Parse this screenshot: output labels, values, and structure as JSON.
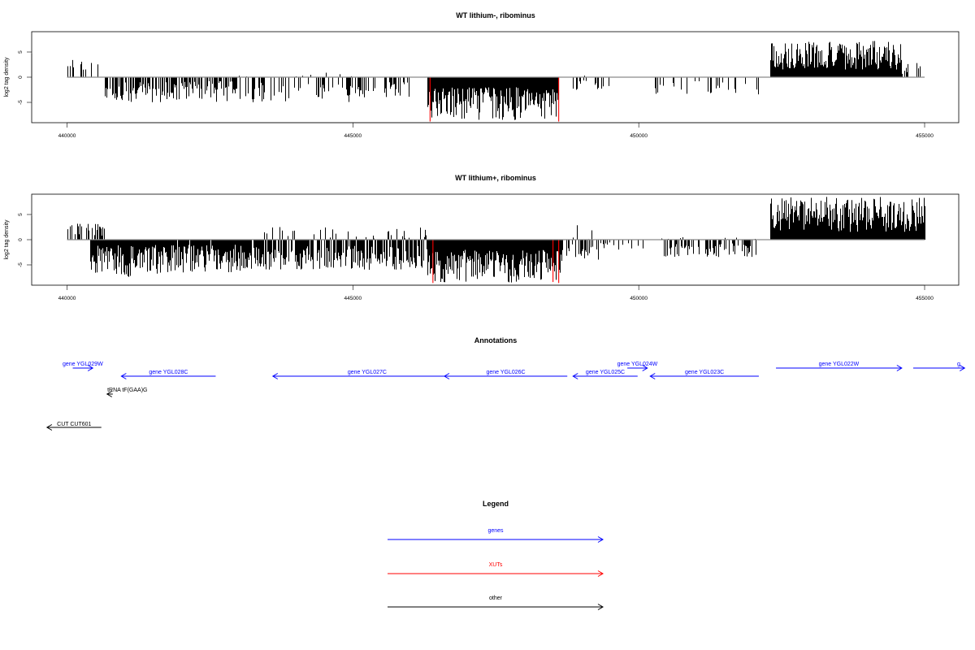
{
  "chart_data": [
    {
      "type": "bar",
      "title": "WT lithium-, ribominus",
      "xlabel": "",
      "ylabel": "log2 tag density",
      "xlim": [
        440000,
        455000
      ],
      "ylim": [
        -9,
        9
      ],
      "x_ticks": [
        "440000",
        "445000",
        "450000",
        "455000"
      ],
      "y_ticks": [
        "-5",
        "0",
        "5"
      ],
      "grid": false,
      "series": [
        {
          "color": "#000000",
          "segments": [
            {
              "x0": 440000,
              "x1": 440550,
              "min": 0.8,
              "max": 3.5,
              "density": 0.3
            },
            {
              "x0": 440650,
              "x1": 441900,
              "min": -5.0,
              "max": -1.0,
              "density": 0.7
            },
            {
              "x0": 441900,
              "x1": 443000,
              "min": -5.0,
              "max": -0.8,
              "density": 0.6
            },
            {
              "x0": 443000,
              "x1": 445000,
              "min": -5.0,
              "max": 1.0,
              "density": 0.45
            },
            {
              "x0": 445000,
              "x1": 446000,
              "min": -4.0,
              "max": -1.0,
              "density": 0.35
            },
            {
              "x0": 446300,
              "x1": 448600,
              "min": -8.5,
              "max": -2.0,
              "density": 1.0
            },
            {
              "x0": 448800,
              "x1": 449500,
              "min": -2.5,
              "max": 0.5,
              "density": 0.25
            },
            {
              "x0": 450200,
              "x1": 452100,
              "min": -3.5,
              "max": -0.8,
              "density": 0.2
            },
            {
              "x0": 452300,
              "x1": 454600,
              "min": 1.5,
              "max": 7.2,
              "density": 1.0
            },
            {
              "x0": 454600,
              "x1": 455000,
              "min": 0.5,
              "max": 3.0,
              "density": 0.25
            }
          ]
        },
        {
          "color": "#ff0000",
          "spikes": [
            {
              "x": 446350,
              "y": -8.8
            },
            {
              "x": 448600,
              "y": -8.8
            }
          ]
        }
      ]
    },
    {
      "type": "bar",
      "title": "WT lithium+, ribominus",
      "xlabel": "",
      "ylabel": "log2 tag density",
      "xlim": [
        440000,
        455000
      ],
      "ylim": [
        -9,
        9
      ],
      "x_ticks": [
        "440000",
        "445000",
        "450000",
        "455000"
      ],
      "y_ticks": [
        "-5",
        "0",
        "5"
      ],
      "grid": false,
      "series": [
        {
          "color": "#000000",
          "segments": [
            {
              "x0": 440000,
              "x1": 440650,
              "min": 0.8,
              "max": 3.2,
              "density": 0.55
            },
            {
              "x0": 440400,
              "x1": 441900,
              "min": -7.5,
              "max": -1.0,
              "density": 1.0
            },
            {
              "x0": 441900,
              "x1": 443200,
              "min": -6.5,
              "max": -1.0,
              "density": 0.95
            },
            {
              "x0": 443200,
              "x1": 446300,
              "min": -6.0,
              "max": 2.5,
              "density": 0.9
            },
            {
              "x0": 446300,
              "x1": 448650,
              "min": -8.5,
              "max": -2.0,
              "density": 1.0
            },
            {
              "x0": 448650,
              "x1": 449300,
              "min": -4.0,
              "max": 3.0,
              "density": 0.6
            },
            {
              "x0": 449300,
              "x1": 450200,
              "min": -2.0,
              "max": 0.5,
              "density": 0.25
            },
            {
              "x0": 450400,
              "x1": 452100,
              "min": -3.5,
              "max": 0.5,
              "density": 0.55
            },
            {
              "x0": 452300,
              "x1": 455000,
              "min": 1.5,
              "max": 8.5,
              "density": 1.0
            }
          ]
        },
        {
          "color": "#ff0000",
          "spikes": [
            {
              "x": 446400,
              "y": -8.6
            },
            {
              "x": 448500,
              "y": -8.4
            },
            {
              "x": 448600,
              "y": -8.6
            }
          ]
        }
      ]
    }
  ],
  "annotations": {
    "title": "Annotations",
    "features": [
      {
        "label": "gene YGL029W",
        "start": 440100,
        "end": 440450,
        "strand": "+",
        "row": 0,
        "color": "#0000ff"
      },
      {
        "label": "gene YGL028C",
        "start": 440950,
        "end": 442600,
        "strand": "-",
        "row": 1,
        "color": "#0000ff"
      },
      {
        "label": "gene YGL027C",
        "start": 443600,
        "end": 446900,
        "strand": "-",
        "row": 1,
        "color": "#0000ff"
      },
      {
        "label": "gene YGL026C",
        "start": 446600,
        "end": 448750,
        "strand": "-",
        "row": 1,
        "color": "#0000ff"
      },
      {
        "label": "gene YGL025C",
        "start": 448850,
        "end": 449980,
        "strand": "-",
        "row": 1,
        "color": "#0000ff"
      },
      {
        "label": "gene YGL024W",
        "start": 449800,
        "end": 450150,
        "strand": "+",
        "row": 0,
        "color": "#0000ff"
      },
      {
        "label": "gene YGL023C",
        "start": 450200,
        "end": 452100,
        "strand": "-",
        "row": 1,
        "color": "#0000ff"
      },
      {
        "label": "gene YGL022W",
        "start": 452400,
        "end": 454600,
        "strand": "+",
        "row": 0,
        "color": "#0000ff"
      },
      {
        "label": "g",
        "start": 454800,
        "end": 455700,
        "strand": "+",
        "row": 0,
        "color": "#0000ff"
      },
      {
        "label": "tRNA tF(GAA)G",
        "start": 440700,
        "end": 440800,
        "strand": "-",
        "row": 2,
        "color": "#000000"
      },
      {
        "label": "CUT CUT601",
        "start": 439650,
        "end": 440600,
        "strand": "-",
        "row": 3,
        "color": "#000000"
      }
    ]
  },
  "legend": {
    "title": "Legend",
    "items": [
      {
        "label": "genes",
        "color": "#0000ff"
      },
      {
        "label": "XUTs",
        "color": "#ff0000"
      },
      {
        "label": "other",
        "color": "#000000"
      }
    ]
  }
}
